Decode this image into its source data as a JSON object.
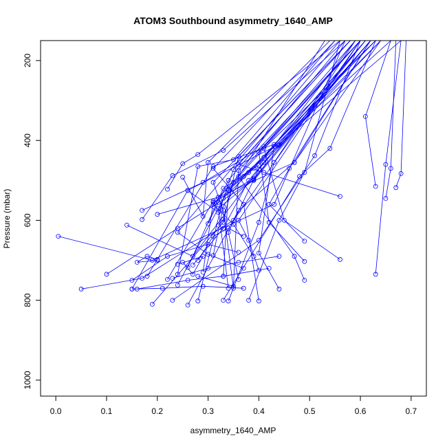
{
  "chart_data": {
    "type": "line",
    "title": "ATOM3 Southbound asymmetry_1640_AMP",
    "xlabel": "asymmetry_1640_AMP",
    "ylabel": "Pressure (mbar)",
    "xlim": [
      -0.03,
      0.73
    ],
    "ylim": [
      1040,
      150
    ],
    "y_inverted": true,
    "grid": false,
    "legend": "none",
    "line_color": "#0000ff",
    "marker": "open-circle",
    "x_ticks": [
      0.0,
      0.1,
      0.2,
      0.3,
      0.4,
      0.5,
      0.6,
      0.7
    ],
    "x_tick_labels": [
      "0.0",
      "0.1",
      "0.2",
      "0.3",
      "0.4",
      "0.5",
      "0.6",
      "0.7"
    ],
    "y_ticks": [
      200,
      400,
      600,
      800,
      1000
    ],
    "y_tick_labels": [
      "200",
      "400",
      "600",
      "800",
      "1000"
    ],
    "series": [
      {
        "x": [
          0.005,
          0.19,
          0.43,
          0.57
        ],
        "y": [
          640,
          700,
          560,
          150
        ]
      },
      {
        "x": [
          0.1,
          0.24,
          0.39,
          0.62
        ],
        "y": [
          735,
          620,
          500,
          150
        ]
      },
      {
        "x": [
          0.05,
          0.17,
          0.35,
          0.6
        ],
        "y": [
          772,
          745,
          600,
          150
        ]
      },
      {
        "x": [
          0.14,
          0.27,
          0.41,
          0.64
        ],
        "y": [
          612,
          690,
          455,
          150
        ]
      },
      {
        "x": [
          0.15,
          0.26,
          0.44,
          0.68
        ],
        "y": [
          772,
          525,
          410,
          150
        ]
      },
      {
        "x": [
          0.19,
          0.33,
          0.36,
          0.58
        ],
        "y": [
          810,
          605,
          440,
          150
        ]
      },
      {
        "x": [
          0.23,
          0.4,
          0.51,
          0.6
        ],
        "y": [
          800,
          650,
          438,
          150
        ]
      },
      {
        "x": [
          0.26,
          0.36,
          0.47,
          0.62
        ],
        "y": [
          812,
          575,
          455,
          150
        ]
      },
      {
        "x": [
          0.28,
          0.33,
          0.39,
          0.61
        ],
        "y": [
          802,
          545,
          470,
          150
        ]
      },
      {
        "x": [
          0.33,
          0.48,
          0.54,
          0.63
        ],
        "y": [
          800,
          490,
          420,
          150
        ]
      },
      {
        "x": [
          0.34,
          0.4,
          0.43,
          0.59
        ],
        "y": [
          802,
          605,
          455,
          150
        ]
      },
      {
        "x": [
          0.38,
          0.44,
          0.49,
          0.56
        ],
        "y": [
          800,
          600,
          480,
          150
        ]
      },
      {
        "x": [
          0.4,
          0.37,
          0.31,
          0.55
        ],
        "y": [
          802,
          560,
          470,
          150
        ]
      },
      {
        "x": [
          0.44,
          0.4,
          0.43,
          0.66
        ],
        "y": [
          772,
          682,
          415,
          150
        ]
      },
      {
        "x": [
          0.49,
          0.47,
          0.36,
          0.53
        ],
        "y": [
          750,
          690,
          490,
          150
        ]
      },
      {
        "x": [
          0.49,
          0.42,
          0.4,
          0.6
        ],
        "y": [
          703,
          605,
          430,
          150
        ]
      },
      {
        "x": [
          0.49,
          0.42,
          0.46,
          0.62
        ],
        "y": [
          652,
          560,
          470,
          150
        ]
      },
      {
        "x": [
          0.56,
          0.45,
          0.41,
          0.63
        ],
        "y": [
          698,
          600,
          420,
          150
        ]
      },
      {
        "x": [
          0.56,
          0.41,
          0.36,
          0.58
        ],
        "y": [
          540,
          480,
          460,
          150
        ]
      },
      {
        "x": [
          0.63,
          0.65,
          0.68
        ],
        "y": [
          735,
          460,
          150
        ]
      },
      {
        "x": [
          0.63,
          0.61,
          0.66
        ],
        "y": [
          515,
          340,
          150
        ]
      },
      {
        "x": [
          0.65,
          0.66,
          0.67
        ],
        "y": [
          545,
          470,
          150
        ]
      },
      {
        "x": [
          0.67,
          0.68,
          0.69
        ],
        "y": [
          518,
          483,
          150
        ]
      },
      {
        "x": [
          0.17,
          0.29,
          0.41,
          0.6
        ],
        "y": [
          575,
          505,
          415,
          150
        ]
      },
      {
        "x": [
          0.17,
          0.23,
          0.33,
          0.57
        ],
        "y": [
          598,
          488,
          425,
          150
        ]
      },
      {
        "x": [
          0.18,
          0.31,
          0.43,
          0.63
        ],
        "y": [
          740,
          465,
          410,
          150
        ]
      },
      {
        "x": [
          0.2,
          0.32,
          0.47,
          0.64
        ],
        "y": [
          585,
          542,
          455,
          150
        ]
      },
      {
        "x": [
          0.22,
          0.25,
          0.28,
          0.56
        ],
        "y": [
          522,
          458,
          435,
          150
        ]
      },
      {
        "x": [
          0.22,
          0.31,
          0.41,
          0.61
        ],
        "y": [
          748,
          552,
          442,
          150
        ]
      },
      {
        "x": [
          0.24,
          0.34,
          0.44,
          0.62
        ],
        "y": [
          762,
          522,
          412,
          150
        ]
      },
      {
        "x": [
          0.24,
          0.28,
          0.35,
          0.55
        ],
        "y": [
          735,
          465,
          448,
          150
        ]
      },
      {
        "x": [
          0.26,
          0.33,
          0.4,
          0.59
        ],
        "y": [
          718,
          520,
          462,
          150
        ]
      },
      {
        "x": [
          0.25,
          0.29,
          0.3,
          0.54
        ],
        "y": [
          492,
          590,
          455,
          150
        ]
      },
      {
        "x": [
          0.26,
          0.32,
          0.35,
          0.58
        ],
        "y": [
          525,
          580,
          473,
          150
        ]
      },
      {
        "x": [
          0.27,
          0.33,
          0.38,
          0.61
        ],
        "y": [
          712,
          620,
          500,
          150
        ]
      },
      {
        "x": [
          0.28,
          0.35,
          0.36,
          0.6
        ],
        "y": [
          740,
          765,
          475,
          150
        ]
      },
      {
        "x": [
          0.29,
          0.31,
          0.39,
          0.62
        ],
        "y": [
          730,
          555,
          495,
          150
        ]
      },
      {
        "x": [
          0.3,
          0.32,
          0.34,
          0.57
        ],
        "y": [
          608,
          555,
          500,
          150
        ]
      },
      {
        "x": [
          0.31,
          0.33,
          0.37,
          0.63
        ],
        "y": [
          688,
          565,
          490,
          150
        ]
      },
      {
        "x": [
          0.32,
          0.33,
          0.35,
          0.6
        ],
        "y": [
          612,
          598,
          505,
          150
        ]
      },
      {
        "x": [
          0.33,
          0.34,
          0.38,
          0.64
        ],
        "y": [
          740,
          525,
          480,
          150
        ]
      },
      {
        "x": [
          0.34,
          0.32,
          0.39,
          0.61
        ],
        "y": [
          770,
          570,
          498,
          150
        ]
      },
      {
        "x": [
          0.35,
          0.33,
          0.31,
          0.58
        ],
        "y": [
          770,
          575,
          505,
          150
        ]
      },
      {
        "x": [
          0.36,
          0.34,
          0.4,
          0.62
        ],
        "y": [
          748,
          630,
          472,
          150
        ]
      },
      {
        "x": [
          0.37,
          0.3,
          0.24,
          0.56
        ],
        "y": [
          720,
          685,
          630,
          150
        ]
      },
      {
        "x": [
          0.39,
          0.35,
          0.31,
          0.59
        ],
        "y": [
          690,
          610,
          560,
          150
        ]
      },
      {
        "x": [
          0.4,
          0.38,
          0.36,
          0.6
        ],
        "y": [
          725,
          650,
          600,
          150
        ]
      },
      {
        "x": [
          0.2,
          0.18,
          0.16,
          0.2
        ],
        "y": [
          698,
          690,
          705,
          700
        ]
      },
      {
        "x": [
          0.15,
          0.21,
          0.29,
          0.37
        ],
        "y": [
          772,
          770,
          765,
          770
        ]
      },
      {
        "x": [
          0.16,
          0.26,
          0.33,
          0.42
        ],
        "y": [
          772,
          750,
          740,
          720
        ]
      },
      {
        "x": [
          0.15,
          0.22,
          0.3,
          0.36
        ],
        "y": [
          750,
          690,
          660,
          680
        ]
      },
      {
        "x": [
          0.25,
          0.27,
          0.29,
          0.24
        ],
        "y": [
          705,
          735,
          690,
          710
        ]
      },
      {
        "x": [
          0.28,
          0.31,
          0.34,
          0.37
        ],
        "y": [
          700,
          640,
          620,
          640
        ]
      },
      {
        "x": [
          0.23,
          0.3,
          0.36,
          0.44
        ],
        "y": [
          745,
          720,
          705,
          690
        ]
      }
    ]
  }
}
